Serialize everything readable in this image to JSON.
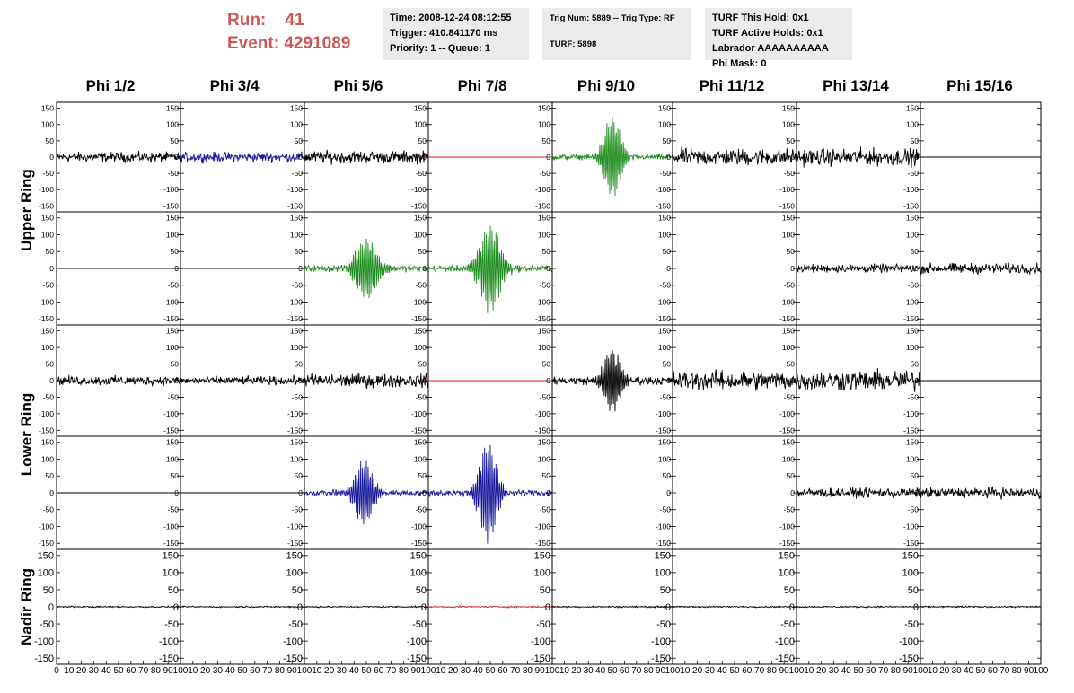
{
  "header": {
    "run_label": "Run:",
    "run_value": "41",
    "event_label": "Event:",
    "event_value": "4291089"
  },
  "info_box_1": {
    "time": "Time: 2008-12-24 08:12:55",
    "trigger": "Trigger: 410.841170 ms",
    "priority": "Priority: 1 -- Queue: 1"
  },
  "info_box_2": {
    "trig": "Trig Num: 5889 -- Trig Type: RF",
    "turf": "TURF: 5898"
  },
  "info_box_3": {
    "hold": "TURF This Hold: 0x1",
    "active": "TURF Active Holds: 0x1",
    "labrador": "Labrador AAAAAAAAAA",
    "phimask": "Phi Mask: 0"
  },
  "chart_data": {
    "type": "line",
    "columns": [
      "Phi 1/2",
      "Phi 3/4",
      "Phi 5/6",
      "Phi 7/8",
      "Phi 9/10",
      "Phi 11/12",
      "Phi 13/14",
      "Phi 15/16"
    ],
    "rows": [
      "Upper Ring",
      "Lower Ring",
      "Nadir Ring"
    ],
    "xlim": [
      0,
      100
    ],
    "ylim": [
      -160,
      160
    ],
    "yticks": [
      -150,
      -100,
      -50,
      0,
      50,
      100,
      150
    ],
    "xticks": [
      0,
      10,
      20,
      30,
      40,
      50,
      60,
      70,
      80,
      90,
      100
    ],
    "grid": false,
    "colors": {
      "default": "#000000",
      "blue": "#1a1a9c",
      "green": "#1e8c1e",
      "red": "#cc1f1f"
    },
    "panels": [
      [
        {
          "kind": "noise",
          "amp": 22,
          "color": "default"
        },
        {
          "kind": "noise",
          "amp": 22,
          "color": "blue"
        },
        {
          "kind": "noise",
          "amp": 28,
          "color": "default"
        },
        {
          "kind": "flat",
          "amp": 0,
          "color": "red"
        },
        {
          "kind": "burst",
          "amp": 125,
          "center": 50,
          "width": 9,
          "noise": 12,
          "color": "green"
        },
        {
          "kind": "noise",
          "amp": 38,
          "color": "default"
        },
        {
          "kind": "noise",
          "amp": 38,
          "color": "default"
        },
        {
          "kind": "flat",
          "amp": 0,
          "color": "default"
        }
      ],
      [
        {
          "kind": "flat",
          "amp": 0,
          "color": "default"
        },
        {
          "kind": "flat",
          "amp": 0,
          "color": "default"
        },
        {
          "kind": "burst",
          "amp": 90,
          "center": 50,
          "width": 11,
          "noise": 14,
          "color": "green"
        },
        {
          "kind": "burst",
          "amp": 130,
          "center": 50,
          "width": 11,
          "noise": 14,
          "color": "green"
        },
        {
          "kind": "blank",
          "amp": 0,
          "color": "default"
        },
        {
          "kind": "blank",
          "amp": 0,
          "color": "default"
        },
        {
          "kind": "noise",
          "amp": 18,
          "color": "default"
        },
        {
          "kind": "noise",
          "amp": 22,
          "color": "default"
        }
      ],
      [
        {
          "kind": "noise",
          "amp": 20,
          "color": "default"
        },
        {
          "kind": "noise",
          "amp": 18,
          "color": "default"
        },
        {
          "kind": "noise",
          "amp": 30,
          "color": "default"
        },
        {
          "kind": "flat",
          "amp": 0,
          "color": "red"
        },
        {
          "kind": "burst",
          "amp": 95,
          "center": 50,
          "width": 9,
          "noise": 18,
          "color": "default"
        },
        {
          "kind": "noise",
          "amp": 42,
          "color": "default"
        },
        {
          "kind": "noise",
          "amp": 45,
          "color": "default"
        },
        {
          "kind": "flat",
          "amp": 0,
          "color": "default"
        }
      ],
      [
        {
          "kind": "flat",
          "amp": 0,
          "color": "default"
        },
        {
          "kind": "flat",
          "amp": 0,
          "color": "default"
        },
        {
          "kind": "burst",
          "amp": 100,
          "center": 48,
          "width": 9,
          "noise": 12,
          "color": "blue"
        },
        {
          "kind": "burst",
          "amp": 150,
          "center": 48,
          "width": 9,
          "noise": 14,
          "color": "blue"
        },
        {
          "kind": "blank",
          "amp": 0,
          "color": "default"
        },
        {
          "kind": "blank",
          "amp": 0,
          "color": "default"
        },
        {
          "kind": "noise",
          "amp": 20,
          "color": "default"
        },
        {
          "kind": "noise",
          "amp": 22,
          "color": "default"
        }
      ],
      [
        {
          "kind": "noise",
          "amp": 3,
          "color": "default"
        },
        {
          "kind": "noise",
          "amp": 3,
          "color": "default"
        },
        {
          "kind": "noise",
          "amp": 3,
          "color": "default"
        },
        {
          "kind": "noise",
          "amp": 3,
          "color": "red"
        },
        {
          "kind": "noise",
          "amp": 3,
          "color": "default"
        },
        {
          "kind": "noise",
          "amp": 3,
          "color": "default"
        },
        {
          "kind": "noise",
          "amp": 3,
          "color": "default"
        },
        {
          "kind": "noise",
          "amp": 3,
          "color": "default"
        }
      ]
    ]
  }
}
